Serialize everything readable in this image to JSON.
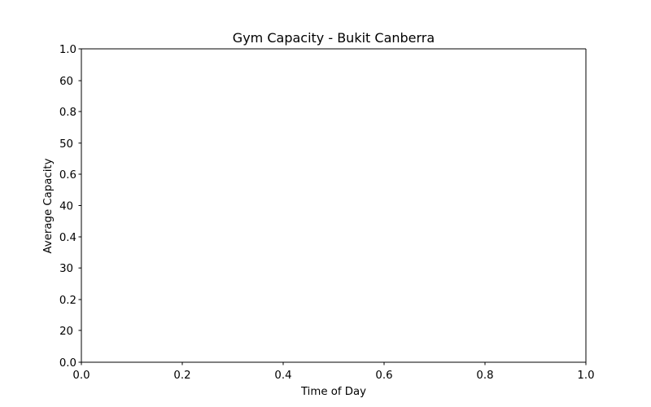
{
  "chart_data": {
    "type": "line",
    "title": "Gym Capacity - Bukit Canberra",
    "xlabel": "Time of Day",
    "ylabel": "Average Capacity",
    "xlim": [
      0.0,
      1.0
    ],
    "x_ticks": [
      "0.0",
      "0.2",
      "0.4",
      "0.6",
      "0.8",
      "1.0"
    ],
    "y_ticks_primary": [
      "0.0",
      "0.2",
      "0.4",
      "0.6",
      "0.8",
      "1.0"
    ],
    "ylim_primary": [
      0.0,
      1.0
    ],
    "y_ticks_secondary": [
      "20",
      "30",
      "40",
      "50",
      "60"
    ],
    "y_ticks_secondary_values": [
      20,
      30,
      40,
      50,
      60
    ],
    "ylim_secondary": [
      14.9,
      65.1
    ],
    "series": [],
    "grid": false,
    "legend": "none"
  }
}
